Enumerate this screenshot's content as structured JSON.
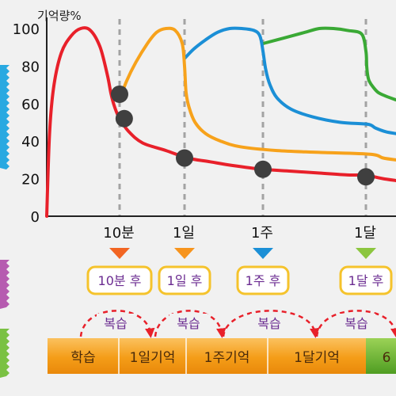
{
  "chart_data": {
    "type": "line",
    "ylabel": "기억량%",
    "ylim": [
      0,
      100
    ],
    "y_ticks": [
      "0",
      "20",
      "40",
      "60",
      "80",
      "100"
    ],
    "grid": false,
    "review_marks": [
      {
        "label": "10분",
        "tag": "10분 후",
        "color": "#f26522"
      },
      {
        "label": "1일",
        "tag": "1일 후",
        "color": "#f7941d"
      },
      {
        "label": "1주",
        "tag": "1주 후",
        "color": "#1b8fd6"
      },
      {
        "label": "1달",
        "tag": "1달 후",
        "color": "#8cc63f"
      }
    ],
    "series": [
      {
        "color": "#e8202a",
        "points": [
          [
            0,
            0
          ],
          [
            1.2,
            45
          ],
          [
            3,
            70
          ],
          [
            6,
            87
          ],
          [
            10,
            96
          ],
          [
            14,
            100
          ],
          [
            18,
            99
          ],
          [
            22,
            90
          ],
          [
            25,
            75
          ],
          [
            26.5,
            65
          ],
          [
            28,
            58
          ],
          [
            30,
            52
          ],
          [
            34,
            45
          ],
          [
            40,
            39
          ],
          [
            50,
            35
          ],
          [
            60,
            31
          ],
          [
            75,
            29
          ],
          [
            90,
            27
          ],
          [
            110,
            25
          ],
          [
            130,
            24
          ],
          [
            150,
            23
          ],
          [
            170,
            22
          ],
          [
            190,
            22
          ],
          [
            215,
            21
          ],
          [
            250,
            20
          ],
          [
            300,
            19
          ]
        ]
      },
      {
        "color": "#f7a21b",
        "points": [
          [
            30,
            62
          ],
          [
            33,
            72
          ],
          [
            37,
            82
          ],
          [
            42,
            92
          ],
          [
            46,
            98
          ],
          [
            50,
            100
          ],
          [
            54,
            99
          ],
          [
            57,
            92
          ],
          [
            58,
            80
          ],
          [
            59,
            66
          ],
          [
            61,
            58
          ],
          [
            65,
            50
          ],
          [
            72,
            44
          ],
          [
            82,
            40
          ],
          [
            95,
            37
          ],
          [
            120,
            35
          ],
          [
            150,
            34
          ],
          [
            200,
            33
          ],
          [
            250,
            31
          ],
          [
            300,
            30
          ]
        ]
      },
      {
        "color": "#1b8fd6",
        "points": [
          [
            58,
            84
          ],
          [
            64,
            89
          ],
          [
            72,
            94
          ],
          [
            80,
            98
          ],
          [
            88,
            100
          ],
          [
            96,
            100
          ],
          [
            104,
            99
          ],
          [
            108,
            96
          ],
          [
            110,
            88
          ],
          [
            112,
            78
          ],
          [
            115,
            70
          ],
          [
            120,
            63
          ],
          [
            130,
            57
          ],
          [
            145,
            53
          ],
          [
            165,
            50
          ],
          [
            190,
            49
          ],
          [
            220,
            47
          ],
          [
            260,
            45
          ],
          [
            300,
            44
          ]
        ]
      },
      {
        "color": "#3aa935",
        "points": [
          [
            110,
            92
          ],
          [
            125,
            95
          ],
          [
            140,
            98
          ],
          [
            150,
            100
          ],
          [
            160,
            100
          ],
          [
            170,
            99
          ],
          [
            180,
            97
          ],
          [
            183,
            88
          ],
          [
            186,
            80
          ],
          [
            190,
            75
          ],
          [
            196,
            72
          ],
          [
            210,
            69
          ],
          [
            230,
            66
          ],
          [
            260,
            64
          ],
          [
            300,
            62
          ]
        ]
      }
    ],
    "retest_points": [
      {
        "x": 30,
        "y": 65
      },
      {
        "x": 32,
        "y": 52
      },
      {
        "x": 58,
        "y": 31
      },
      {
        "x": 110,
        "y": 25
      },
      {
        "x": 183,
        "y": 21
      }
    ],
    "review_label": "복습",
    "memory_bar": [
      {
        "label": "학습",
        "color": "#f7a21b"
      },
      {
        "label": "1일기억",
        "color": "#f7a21b"
      },
      {
        "label": "1주기억",
        "color": "#f7a21b"
      },
      {
        "label": "1달기억",
        "color": "#f7a21b"
      },
      {
        "label": "6",
        "color": "#6ab42d"
      }
    ]
  }
}
